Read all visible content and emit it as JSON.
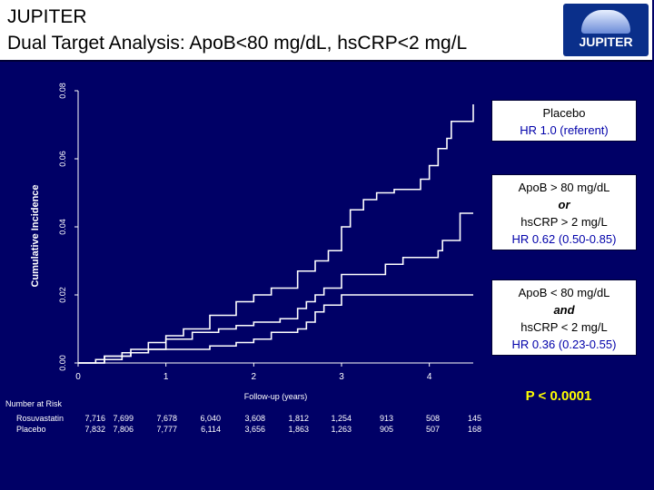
{
  "slide": {
    "title": "JUPITER",
    "subtitle": "Dual Target Analysis: ApoB<80 mg/dL, hsCRP<2 mg/L",
    "logo_text": "JUPITER"
  },
  "legend": {
    "placebo": {
      "line1": "Placebo",
      "hr": "HR 1.0 (referent)"
    },
    "high": {
      "line1": "ApoB > 80 mg/dL",
      "conj": "or",
      "line2": "hsCRP > 2 mg/L",
      "hr": "HR 0.62 (0.50-0.85)"
    },
    "low": {
      "line1": "ApoB < 80 mg/dL",
      "conj": "and",
      "line2": "hsCRP < 2 mg/L",
      "hr": "HR 0.36 (0.23-0.55)"
    }
  },
  "p_value": "P < 0.0001",
  "number_at_risk": {
    "title": "Number at Risk",
    "rows": [
      {
        "label": "Rosuvastatin",
        "values": [
          "7,716",
          "7,699",
          "7,678",
          "6,040",
          "3,608",
          "1,812",
          "1,254",
          "913",
          "508",
          "145"
        ]
      },
      {
        "label": "Placebo",
        "values": [
          "7,832",
          "7,806",
          "7,777",
          "6,114",
          "3,656",
          "1,863",
          "1,263",
          "905",
          "507",
          "168"
        ]
      }
    ]
  },
  "colors": {
    "background": "#000066",
    "curves": "#ffffff",
    "hr_text": "#0000aa",
    "p_value": "#ffff00"
  },
  "chart_data": {
    "type": "line",
    "title": "",
    "xlabel": "Follow-up (years)",
    "ylabel": "Cumulative Incidence",
    "xlim": [
      0,
      4.6
    ],
    "ylim": [
      0,
      0.08
    ],
    "x_ticks": [
      "0",
      "1",
      "2",
      "3",
      "4"
    ],
    "y_ticks": [
      "0.00",
      "0.02",
      "0.04",
      "0.06",
      "0.08"
    ],
    "grid": false,
    "legend_position": "right",
    "series": [
      {
        "name": "Placebo",
        "points": [
          [
            0,
            0
          ],
          [
            0.2,
            0.001
          ],
          [
            0.5,
            0.003
          ],
          [
            0.8,
            0.006
          ],
          [
            1.0,
            0.008
          ],
          [
            1.2,
            0.01
          ],
          [
            1.5,
            0.014
          ],
          [
            1.8,
            0.018
          ],
          [
            2.0,
            0.02
          ],
          [
            2.2,
            0.022
          ],
          [
            2.5,
            0.027
          ],
          [
            2.7,
            0.03
          ],
          [
            2.85,
            0.033
          ],
          [
            3.0,
            0.04
          ],
          [
            3.1,
            0.045
          ],
          [
            3.25,
            0.048
          ],
          [
            3.4,
            0.05
          ],
          [
            3.6,
            0.051
          ],
          [
            3.9,
            0.054
          ],
          [
            4.0,
            0.058
          ],
          [
            4.1,
            0.063
          ],
          [
            4.2,
            0.066
          ],
          [
            4.25,
            0.071
          ],
          [
            4.45,
            0.071
          ],
          [
            4.5,
            0.076
          ]
        ]
      },
      {
        "name": "ApoB > 80 mg/dL or hsCRP > 2 mg/L",
        "points": [
          [
            0,
            0
          ],
          [
            0.3,
            0.002
          ],
          [
            0.6,
            0.004
          ],
          [
            1.0,
            0.007
          ],
          [
            1.3,
            0.009
          ],
          [
            1.6,
            0.01
          ],
          [
            1.8,
            0.011
          ],
          [
            2.0,
            0.012
          ],
          [
            2.3,
            0.013
          ],
          [
            2.5,
            0.016
          ],
          [
            2.6,
            0.018
          ],
          [
            2.7,
            0.02
          ],
          [
            2.8,
            0.022
          ],
          [
            3.0,
            0.026
          ],
          [
            3.4,
            0.026
          ],
          [
            3.5,
            0.029
          ],
          [
            3.7,
            0.031
          ],
          [
            4.0,
            0.031
          ],
          [
            4.1,
            0.033
          ],
          [
            4.15,
            0.036
          ],
          [
            4.3,
            0.036
          ],
          [
            4.35,
            0.044
          ],
          [
            4.5,
            0.044
          ]
        ]
      },
      {
        "name": "ApoB < 80 mg/dL and hsCRP < 2 mg/L",
        "points": [
          [
            0,
            0
          ],
          [
            0.3,
            0.002
          ],
          [
            0.6,
            0.003
          ],
          [
            0.8,
            0.004
          ],
          [
            1.2,
            0.004
          ],
          [
            1.5,
            0.005
          ],
          [
            1.8,
            0.006
          ],
          [
            2.0,
            0.007
          ],
          [
            2.2,
            0.009
          ],
          [
            2.5,
            0.01
          ],
          [
            2.6,
            0.012
          ],
          [
            2.7,
            0.015
          ],
          [
            2.8,
            0.017
          ],
          [
            3.0,
            0.02
          ],
          [
            3.2,
            0.02
          ],
          [
            3.5,
            0.02
          ],
          [
            4.0,
            0.02
          ],
          [
            4.5,
            0.02
          ]
        ]
      }
    ]
  }
}
